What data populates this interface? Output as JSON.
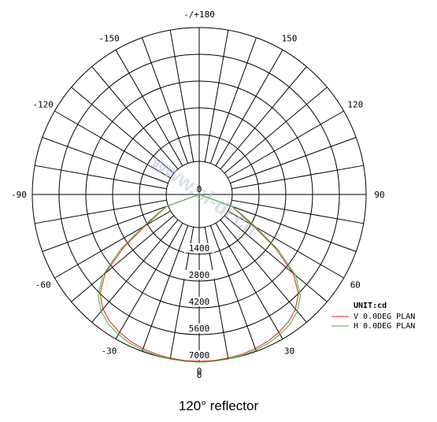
{
  "caption": "120°  reflector",
  "watermark": "www.sl-di.cn",
  "chart_data": {
    "type": "polar",
    "title": "",
    "unit_label": "UNIT:cd",
    "angle_labels": [
      {
        "angle": 0,
        "text": "0"
      },
      {
        "angle": 30,
        "text": "30"
      },
      {
        "angle": 60,
        "text": "60"
      },
      {
        "angle": 90,
        "text": "90"
      },
      {
        "angle": 120,
        "text": "120"
      },
      {
        "angle": 150,
        "text": "150"
      },
      {
        "angle": 180,
        "text": "-/+180"
      },
      {
        "angle": -150,
        "text": "-150"
      },
      {
        "angle": -120,
        "text": "-120"
      },
      {
        "angle": -90,
        "text": "-90"
      },
      {
        "angle": -60,
        "text": "-60"
      },
      {
        "angle": -30,
        "text": "-30"
      }
    ],
    "radial_ticks": [
      {
        "value": 0,
        "text": "0"
      },
      {
        "value": 1400,
        "text": "1400"
      },
      {
        "value": 2800,
        "text": "2800"
      },
      {
        "value": 4200,
        "text": "4200"
      },
      {
        "value": 5600,
        "text": "5600"
      },
      {
        "value": 7000,
        "text": "7000"
      }
    ],
    "bottom_tick": "0",
    "r_inner_value": 0,
    "r_max": 7000,
    "spoke_step_deg": 10,
    "grid": true,
    "legend_position": "bottom-right",
    "series": [
      {
        "name": "V 0.0DEG PLAN",
        "color": "#e02020",
        "angles": [
          -180,
          -90,
          -80,
          -70,
          -65,
          -60,
          -55,
          -50,
          -45,
          -40,
          -35,
          -30,
          -25,
          -20,
          -15,
          -10,
          -5,
          0,
          5,
          10,
          15,
          20,
          25,
          30,
          35,
          40,
          45,
          50,
          55,
          60,
          65,
          70,
          80,
          90,
          180
        ],
        "values": [
          0,
          0,
          0,
          100,
          600,
          1500,
          3100,
          4700,
          5600,
          6100,
          6400,
          6600,
          6750,
          6850,
          6920,
          6960,
          6990,
          7000,
          6990,
          6960,
          6920,
          6850,
          6750,
          6600,
          6400,
          6100,
          5600,
          4700,
          3100,
          1500,
          600,
          100,
          0,
          0,
          0
        ]
      },
      {
        "name": "H 0.0DEG PLAN",
        "color": "#33bb33",
        "angles": [
          -180,
          -90,
          -80,
          -70,
          -65,
          -60,
          -55,
          -50,
          -45,
          -40,
          -35,
          -30,
          -25,
          -20,
          -15,
          -10,
          -5,
          0,
          5,
          10,
          15,
          20,
          25,
          30,
          35,
          40,
          45,
          50,
          55,
          60,
          65,
          70,
          80,
          90,
          180
        ],
        "values": [
          0,
          0,
          0,
          120,
          700,
          1700,
          3300,
          4850,
          5750,
          6250,
          6550,
          6720,
          6850,
          6930,
          6980,
          7010,
          7030,
          7040,
          7030,
          7010,
          6980,
          6930,
          6850,
          6720,
          6550,
          6250,
          5750,
          4850,
          3300,
          1700,
          700,
          120,
          0,
          0,
          0
        ]
      }
    ]
  }
}
